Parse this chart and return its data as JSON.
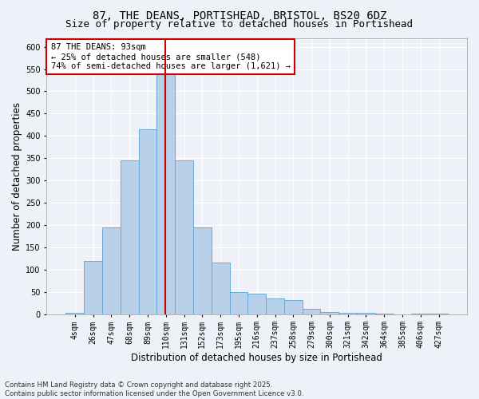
{
  "title1": "87, THE DEANS, PORTISHEAD, BRISTOL, BS20 6DZ",
  "title2": "Size of property relative to detached houses in Portishead",
  "xlabel": "Distribution of detached houses by size in Portishead",
  "ylabel": "Number of detached properties",
  "footnote": "Contains HM Land Registry data © Crown copyright and database right 2025.\nContains public sector information licensed under the Open Government Licence v3.0.",
  "bar_labels": [
    "4sqm",
    "26sqm",
    "47sqm",
    "68sqm",
    "89sqm",
    "110sqm",
    "131sqm",
    "152sqm",
    "173sqm",
    "195sqm",
    "216sqm",
    "237sqm",
    "258sqm",
    "279sqm",
    "300sqm",
    "321sqm",
    "342sqm",
    "364sqm",
    "385sqm",
    "406sqm",
    "427sqm"
  ],
  "bar_values": [
    3,
    120,
    195,
    345,
    415,
    540,
    345,
    195,
    115,
    50,
    45,
    35,
    32,
    12,
    5,
    3,
    2,
    1,
    0,
    1,
    1
  ],
  "bar_color": "#b8d0ea",
  "bar_edge_color": "#6aaad4",
  "ylim": [
    0,
    620
  ],
  "yticks": [
    0,
    50,
    100,
    150,
    200,
    250,
    300,
    350,
    400,
    450,
    500,
    550,
    600
  ],
  "vline_x_index": 4.97,
  "vline_color": "#cc0000",
  "annotation_text": "87 THE DEANS: 93sqm\n← 25% of detached houses are smaller (548)\n74% of semi-detached houses are larger (1,621) →",
  "annotation_box_color": "#cc0000",
  "background_color": "#eef2f8",
  "grid_color": "#ffffff",
  "title_fontsize": 10,
  "subtitle_fontsize": 9,
  "tick_fontsize": 7,
  "ylabel_fontsize": 8.5,
  "xlabel_fontsize": 8.5,
  "annot_fontsize": 7.5
}
